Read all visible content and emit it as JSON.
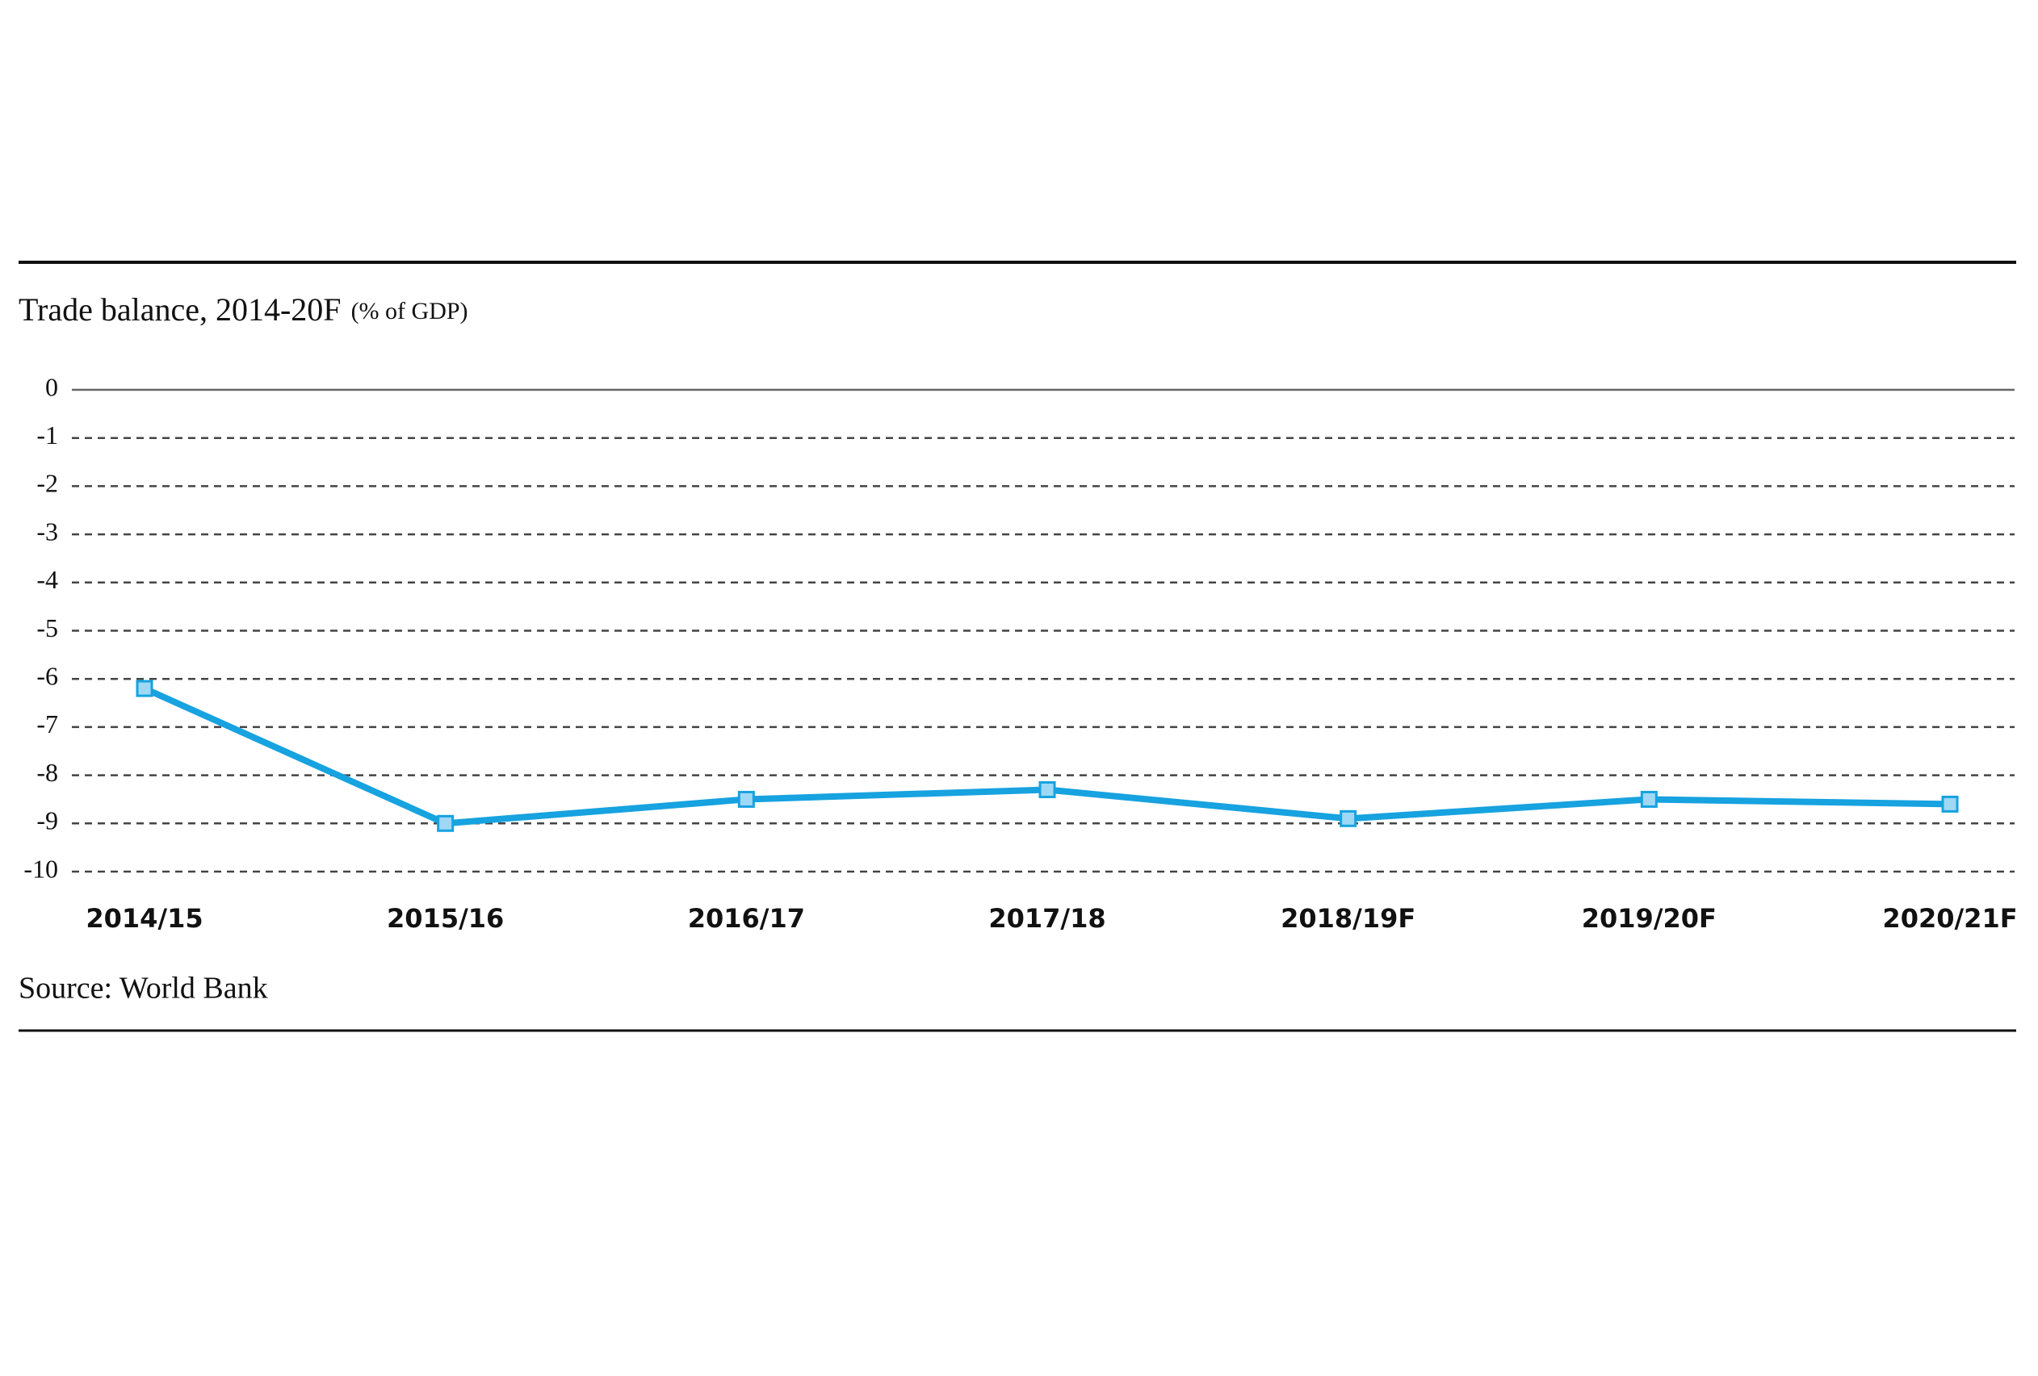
{
  "chart_data": {
    "type": "line",
    "title": "Trade balance, 2014-20F",
    "subtitle": "(% of GDP)",
    "source": "Source: World Bank",
    "categories": [
      "2014/15",
      "2015/16",
      "2016/17",
      "2017/18",
      "2018/19F",
      "2019/20F",
      "2020/21F"
    ],
    "series": [
      {
        "name": "Trade balance",
        "color": "#17a2e0",
        "values": [
          -6.2,
          -9.0,
          -8.5,
          -8.3,
          -8.9,
          -8.5,
          -8.6
        ]
      }
    ],
    "ylim": [
      -10,
      0
    ],
    "yticks": [
      0,
      -1,
      -2,
      -3,
      -4,
      -5,
      -6,
      -7,
      -8,
      -9,
      -10
    ],
    "grid": true
  }
}
